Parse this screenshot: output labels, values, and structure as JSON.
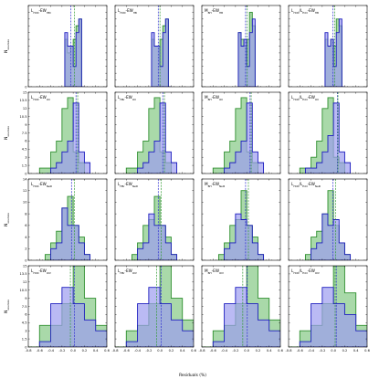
{
  "chart_data": {
    "type": "bar",
    "layout": "4x4 grid of histogram panels",
    "grid": false,
    "xlabel": "Residuals (%)",
    "ylabel": "N<sub>sources</sub>",
    "x_tick_labels": [
      "-0.8",
      "-0.6",
      "-0.4",
      "-0.2",
      "0.0",
      "0.2",
      "0.4",
      "0.6"
    ],
    "xlim": [
      -0.8,
      0.6
    ],
    "colors": {
      "series_a_fill": "#9c9cf0",
      "series_a_edge": "#1c1cbe",
      "series_b_fill": "#8ccc8c",
      "series_b_edge": "#2f8f2f",
      "series_a_mean": "#2a2ad0",
      "series_b_mean": "#2f9a2f"
    },
    "rows": [
      {
        "ylim": [
          0,
          12
        ],
        "y_tick_labels": [
          "0",
          "",
          "",
          "",
          "",
          "",
          "",
          "",
          "",
          "",
          "",
          "",
          ""
        ],
        "bin_width": 0.05,
        "panels": [
          {
            "label": "L_{HCN}-EW_{HBr}",
            "a_start": -0.15,
            "a": [
              8,
              6,
              6,
              3,
              8,
              10,
              0
            ],
            "b_start": -0.15,
            "b": [
              7,
              5,
              6,
              7,
              9,
              10,
              0
            ],
            "mean_a": -0.04,
            "mean_b": 0.02
          },
          {
            "label": "L_{HCN}-EW_{HB}",
            "a_start": -0.15,
            "a": [
              8,
              6,
              6,
              3,
              8,
              10,
              0
            ],
            "b_start": -0.15,
            "b": [
              7,
              6,
              6,
              7,
              9,
              10,
              0
            ],
            "mean_a": -0.03,
            "mean_b": 0.0
          },
          {
            "label": "M_{BH}-EW_{HB}",
            "a_start": -0.15,
            "a": [
              8,
              6,
              7,
              3,
              8,
              10,
              0
            ],
            "b_start": -0.15,
            "b": [
              8,
              7,
              6,
              7,
              11,
              9,
              0
            ],
            "mean_a": -0.02,
            "mean_b": 0.01
          },
          {
            "label": "L_{HCN}/L_{Edd}-EW_{HB}",
            "a_start": -0.15,
            "a": [
              8,
              6,
              7,
              3,
              8,
              10,
              0
            ],
            "b_start": -0.15,
            "b": [
              7,
              6,
              7,
              6,
              10,
              9,
              0
            ],
            "mean_a": -0.01,
            "mean_b": 0.02
          }
        ]
      },
      {
        "ylim": [
          0,
          15
        ],
        "y_tick_labels": [
          "0",
          "1.5",
          "3",
          "4.5",
          "6",
          "7.5",
          "9",
          "10.5",
          "12",
          "13.5",
          "15"
        ],
        "bin_width": 0.1,
        "panels": [
          {
            "label": "L_{HCN}-EW_{OII}",
            "a_start": -0.5,
            "a": [
              0,
              1,
              2,
              4,
              6,
              13,
              4,
              2
            ],
            "b_start": -0.6,
            "b": [
              1,
              1,
              4,
              6,
              12,
              14,
              4,
              2,
              0
            ],
            "mean_a": 0.05,
            "mean_b": 0.08
          },
          {
            "label": "L_{HBr}-EW_{OII}",
            "a_start": -0.5,
            "a": [
              0,
              1,
              2,
              4,
              6,
              13,
              4,
              2
            ],
            "b_start": -0.6,
            "b": [
              1,
              1,
              4,
              6,
              12,
              14,
              4,
              2,
              0
            ],
            "mean_a": 0.05,
            "mean_b": 0.08
          },
          {
            "label": "M_{BH}-EW_{OII}",
            "a_start": -0.5,
            "a": [
              0,
              1,
              2,
              4,
              6,
              13,
              4,
              2
            ],
            "b_start": -0.6,
            "b": [
              1,
              1,
              4,
              6,
              12,
              14,
              4,
              2,
              0
            ],
            "mean_a": 0.06,
            "mean_b": 0.08
          },
          {
            "label": "L_{HCN}/L_{Edd}-EW_{OII}",
            "a_start": -0.5,
            "a": [
              1,
              1,
              2,
              4,
              7,
              13,
              4,
              2
            ],
            "b_start": -0.6,
            "b": [
              1,
              1,
              3,
              6,
              12,
              14,
              3,
              2,
              0
            ],
            "mean_a": 0.07,
            "mean_b": 0.08
          }
        ]
      },
      {
        "ylim": [
          0,
          14
        ],
        "y_tick_labels": [
          "0",
          "2",
          "4",
          "6",
          "8",
          "10",
          "12",
          "14"
        ],
        "bin_width": 0.1,
        "panels": [
          {
            "label": "L_{HCN}-EW_{NeIII}",
            "a_start": -0.4,
            "a": [
              2,
              3,
              9,
              6,
              6,
              3,
              1
            ],
            "b_start": -0.5,
            "b": [
              1,
              3,
              5,
              9,
              11,
              6,
              4,
              1
            ],
            "mean_a": -0.03,
            "mean_b": 0.02
          },
          {
            "label": "L_{HBr}-EW_{NeIII}",
            "a_start": -0.4,
            "a": [
              2,
              3,
              8,
              6,
              6,
              3,
              1
            ],
            "b_start": -0.5,
            "b": [
              1,
              3,
              6,
              7,
              11,
              6,
              4,
              1
            ],
            "mean_a": -0.03,
            "mean_b": 0.02
          },
          {
            "label": "M_{BH}-EW_{NeIII}",
            "a_start": -0.4,
            "a": [
              2,
              3,
              8,
              7,
              6,
              3,
              1
            ],
            "b_start": -0.5,
            "b": [
              1,
              3,
              6,
              7,
              12,
              6,
              4,
              1
            ],
            "mean_a": -0.02,
            "mean_b": 0.03
          },
          {
            "label": "L_{HCN}/L_{Edd}-EW_{NeIII}",
            "a_start": -0.4,
            "a": [
              2,
              3,
              8,
              6,
              7,
              3,
              1
            ],
            "b_start": -0.5,
            "b": [
              1,
              4,
              5,
              8,
              12,
              6,
              3,
              1
            ],
            "mean_a": -0.01,
            "mean_b": 0.04
          }
        ]
      },
      {
        "ylim": [
          0,
          15
        ],
        "y_tick_labels": [
          "0",
          "1.5",
          "3",
          "4.5",
          "6",
          "7.5",
          "9",
          "10.5",
          "12",
          "13.5",
          "15"
        ],
        "bin_width": 0.2,
        "panels": [
          {
            "label": "L_{HCN}-EW_{OIV}",
            "a_start": -0.6,
            "a": [
              1,
              8,
              11,
              8,
              5,
              3,
              1
            ],
            "b_start": -0.8,
            "b": [
              0,
              4,
              4,
              8,
              15,
              9,
              4,
              1
            ],
            "mean_a": 0.02,
            "mean_b": -0.05
          },
          {
            "label": "L_{HBr}-EW_{OIV}",
            "a_start": -0.6,
            "a": [
              1,
              8,
              11,
              8,
              5,
              3,
              1
            ],
            "b_start": -0.8,
            "b": [
              0,
              3,
              4,
              8,
              15,
              9,
              5,
              1
            ],
            "mean_a": 0.02,
            "mean_b": -0.06
          },
          {
            "label": "M_{BH}-EW_{OIV}",
            "a_start": -0.6,
            "a": [
              1,
              8,
              11,
              8,
              5,
              3,
              1
            ],
            "b_start": -0.8,
            "b": [
              0,
              3,
              4,
              8,
              15,
              9,
              5,
              1
            ],
            "mean_a": 0.01,
            "mean_b": -0.07
          },
          {
            "label": "L_{HCN}/L_{Edd}-EW_{OIV}",
            "a_start": -0.6,
            "a": [
              1,
              8,
              11,
              8,
              6,
              3,
              1
            ],
            "b_start": -0.8,
            "b": [
              0,
              3,
              4,
              8,
              15,
              10,
              4,
              1
            ],
            "mean_a": 0.05,
            "mean_b": 0.03
          }
        ]
      }
    ]
  }
}
